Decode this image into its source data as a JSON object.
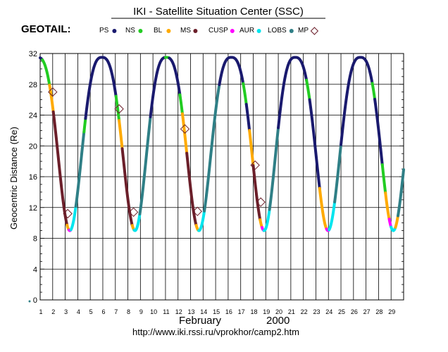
{
  "header": {
    "title": "IKI - Satellite Situation Center (SSC)",
    "satellite": "GEOTAIL:"
  },
  "legend": [
    {
      "label": "PS",
      "color": "#1a1a6e",
      "marker": "dot"
    },
    {
      "label": "NS",
      "color": "#22cc22",
      "marker": "dot"
    },
    {
      "label": "BL",
      "color": "#ffaa00",
      "marker": "dot"
    },
    {
      "label": "MS",
      "color": "#6b1f2a",
      "marker": "dot"
    },
    {
      "label": "CUSP",
      "color": "#ff00ff",
      "marker": "dot"
    },
    {
      "label": "AUR",
      "color": "#00e5ee",
      "marker": "dot"
    },
    {
      "label": "LOBS",
      "color": "#2f7f86",
      "marker": "dot"
    },
    {
      "label": "MP",
      "color": "#6b1f2a",
      "marker": "diamond"
    }
  ],
  "footer": {
    "month": "February",
    "year": "2000",
    "url": "http://www.iki.rssi.ru/vprokhor/camp2.htm"
  },
  "chart_data": {
    "type": "line",
    "ylabel": "Geocentric Distance (Re)",
    "xlabel": "February   2000",
    "xlim": [
      1,
      30
    ],
    "ylim": [
      0,
      32
    ],
    "y_ticks": [
      0,
      4,
      8,
      12,
      16,
      20,
      24,
      28,
      32
    ],
    "x_ticks": [
      1,
      2,
      3,
      4,
      5,
      6,
      7,
      8,
      9,
      10,
      11,
      12,
      13,
      14,
      15,
      16,
      17,
      18,
      19,
      20,
      21,
      22,
      23,
      24,
      25,
      26,
      27,
      28,
      29
    ],
    "grid": true,
    "orbit": {
      "apogee_re": 31.5,
      "perigee_re": 9.0,
      "apogee_days": [
        5.93,
        11.06,
        16.25,
        21.35,
        26.55
      ],
      "perigee_days": [
        3.37,
        8.57,
        13.67,
        18.87,
        23.97,
        29.18
      ]
    },
    "segments": [
      {
        "from": 1.0,
        "to": 1.18,
        "region": "PS"
      },
      {
        "from": 1.18,
        "to": 1.75,
        "region": "NS"
      },
      {
        "from": 1.75,
        "to": 2.05,
        "region": "BL"
      },
      {
        "from": 2.05,
        "to": 3.15,
        "region": "MS"
      },
      {
        "from": 3.15,
        "to": 3.3,
        "region": "BL"
      },
      {
        "from": 3.3,
        "to": 3.45,
        "region": "CUSP"
      },
      {
        "from": 3.45,
        "to": 3.85,
        "region": "AUR"
      },
      {
        "from": 3.85,
        "to": 4.5,
        "region": "LOBS"
      },
      {
        "from": 4.5,
        "to": 4.62,
        "region": "NS"
      },
      {
        "from": 4.62,
        "to": 7.05,
        "region": "PS"
      },
      {
        "from": 7.05,
        "to": 7.3,
        "region": "NS"
      },
      {
        "from": 7.3,
        "to": 7.55,
        "region": "BL"
      },
      {
        "from": 7.55,
        "to": 8.35,
        "region": "MS"
      },
      {
        "from": 8.35,
        "to": 8.5,
        "region": "BL"
      },
      {
        "from": 8.5,
        "to": 8.95,
        "region": "AUR"
      },
      {
        "from": 8.95,
        "to": 9.8,
        "region": "LOBS"
      },
      {
        "from": 9.8,
        "to": 11.0,
        "region": "PS"
      },
      {
        "from": 11.0,
        "to": 11.3,
        "region": "NS"
      },
      {
        "from": 11.3,
        "to": 12.15,
        "region": "PS"
      },
      {
        "from": 12.15,
        "to": 12.35,
        "region": "NS"
      },
      {
        "from": 12.35,
        "to": 12.7,
        "region": "BL"
      },
      {
        "from": 12.7,
        "to": 13.45,
        "region": "MS"
      },
      {
        "from": 13.45,
        "to": 13.65,
        "region": "BL"
      },
      {
        "from": 13.65,
        "to": 14.1,
        "region": "AUR"
      },
      {
        "from": 14.1,
        "to": 15.3,
        "region": "LOBS"
      },
      {
        "from": 15.3,
        "to": 17.2,
        "region": "PS"
      },
      {
        "from": 17.2,
        "to": 17.45,
        "region": "NS"
      },
      {
        "from": 17.45,
        "to": 17.7,
        "region": "PS"
      },
      {
        "from": 17.7,
        "to": 18.0,
        "region": "BL"
      },
      {
        "from": 18.0,
        "to": 18.55,
        "region": "MS"
      },
      {
        "from": 18.55,
        "to": 18.7,
        "region": "BL"
      },
      {
        "from": 18.7,
        "to": 18.85,
        "region": "CUSP"
      },
      {
        "from": 18.85,
        "to": 19.3,
        "region": "AUR"
      },
      {
        "from": 19.3,
        "to": 20.0,
        "region": "LOBS"
      },
      {
        "from": 20.0,
        "to": 22.25,
        "region": "PS"
      },
      {
        "from": 22.25,
        "to": 22.5,
        "region": "NS"
      },
      {
        "from": 22.5,
        "to": 23.3,
        "region": "PS"
      },
      {
        "from": 23.3,
        "to": 23.85,
        "region": "BL"
      },
      {
        "from": 23.85,
        "to": 24.05,
        "region": "CUSP"
      },
      {
        "from": 24.05,
        "to": 24.5,
        "region": "AUR"
      },
      {
        "from": 24.5,
        "to": 25.0,
        "region": "LOBS"
      },
      {
        "from": 25.0,
        "to": 27.5,
        "region": "PS"
      },
      {
        "from": 27.5,
        "to": 27.7,
        "region": "NS"
      },
      {
        "from": 27.7,
        "to": 28.3,
        "region": "PS"
      },
      {
        "from": 28.3,
        "to": 28.55,
        "region": "NS"
      },
      {
        "from": 28.55,
        "to": 28.85,
        "region": "BL"
      },
      {
        "from": 28.85,
        "to": 29.0,
        "region": "CUSP"
      },
      {
        "from": 29.0,
        "to": 29.35,
        "region": "AUR"
      },
      {
        "from": 29.35,
        "to": 29.55,
        "region": "BL"
      },
      {
        "from": 29.55,
        "to": 30.0,
        "region": "LOBS"
      }
    ],
    "mp_crossings": [
      {
        "day": 2.0,
        "distance": 27.0
      },
      {
        "day": 3.2,
        "distance": 11.2
      },
      {
        "day": 7.3,
        "distance": 24.8
      },
      {
        "day": 8.45,
        "distance": 11.4
      },
      {
        "day": 12.55,
        "distance": 22.2
      },
      {
        "day": 13.55,
        "distance": 11.5
      },
      {
        "day": 18.15,
        "distance": 17.5
      },
      {
        "day": 18.6,
        "distance": 12.7
      }
    ]
  }
}
